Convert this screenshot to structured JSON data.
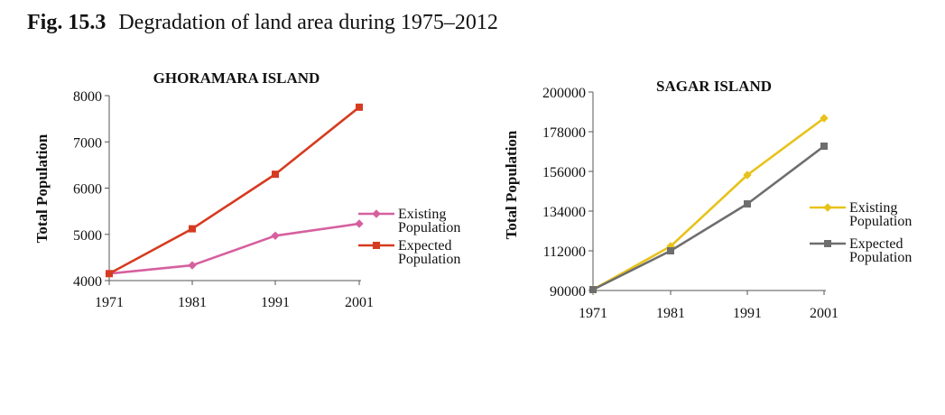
{
  "caption": {
    "number": "Fig. 15.3",
    "text": "Degradation of land area during 1975–2012"
  },
  "chart_data": [
    {
      "type": "line",
      "title": "GHORAMARA ISLAND",
      "xlabel": "",
      "ylabel": "Total Population",
      "x": [
        "1971",
        "1981",
        "1991",
        "2001"
      ],
      "ylim": [
        4000,
        8000
      ],
      "yticks": [
        4000,
        5000,
        6000,
        7000,
        8000
      ],
      "grid": false,
      "legend": "right",
      "series": [
        {
          "name": "Existing Population",
          "label_lines": [
            "Existing",
            "Population"
          ],
          "color": "#d6609f",
          "marker": "diamond",
          "values": [
            4150,
            4330,
            4970,
            5230
          ]
        },
        {
          "name": "Expected Population",
          "label_lines": [
            "Expected",
            "Population"
          ],
          "color": "#d63b1f",
          "marker": "square",
          "values": [
            4150,
            5120,
            6300,
            7750
          ]
        }
      ]
    },
    {
      "type": "line",
      "title": "SAGAR ISLAND",
      "xlabel": "",
      "ylabel": "Total Population",
      "x": [
        "1971",
        "1981",
        "1991",
        "2001"
      ],
      "ylim": [
        90000,
        200000
      ],
      "yticks": [
        90000,
        112000,
        134000,
        156000,
        178000,
        200000
      ],
      "grid": false,
      "legend": "right",
      "series": [
        {
          "name": "Existing Population",
          "label_lines": [
            "Existing",
            "Population"
          ],
          "color": "#e8c21a",
          "marker": "diamond",
          "values": [
            90500,
            114500,
            154000,
            185500
          ]
        },
        {
          "name": "Expected Population",
          "label_lines": [
            "Expected",
            "Population"
          ],
          "color": "#6e6e6e",
          "marker": "square",
          "values": [
            90500,
            112000,
            138000,
            170000
          ]
        }
      ]
    }
  ]
}
